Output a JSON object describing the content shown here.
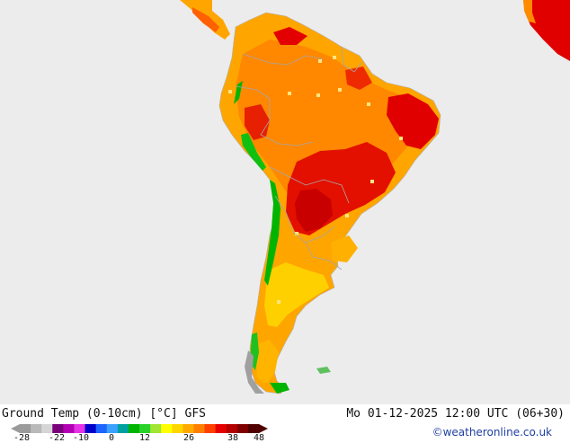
{
  "header": {
    "title_left": "Ground Temp (0-10cm) [°C] GFS",
    "title_right": "Mo 01-12-2025 12:00 UTC (06+30)"
  },
  "credit": "©weatheronline.co.uk",
  "legend": {
    "ticks": [
      "-28",
      "-22",
      "-10",
      "0",
      "12",
      "26",
      "38",
      "48"
    ],
    "colors": [
      "#9a9a9a",
      "#b9b9b9",
      "#d6d6d6",
      "#7a007a",
      "#b400b4",
      "#e632e6",
      "#0000c8",
      "#1e64ff",
      "#3ca0ff",
      "#00a0a0",
      "#00b400",
      "#28d228",
      "#a0e632",
      "#ffff00",
      "#ffd700",
      "#ffaa00",
      "#ff7f00",
      "#ff4000",
      "#e60000",
      "#b40000",
      "#800000",
      "#500000"
    ]
  },
  "map": {
    "region": "South America",
    "colors": {
      "ocean": "#ececec",
      "land_orange": "#ffa500",
      "land_dark_orange": "#ff8000",
      "land_red": "#e60000",
      "land_deep_red": "#c00000",
      "land_yellow": "#ffd000",
      "land_green": "#00b400",
      "land_gray": "#9a9a9a",
      "border": "#a0a0a0"
    }
  }
}
